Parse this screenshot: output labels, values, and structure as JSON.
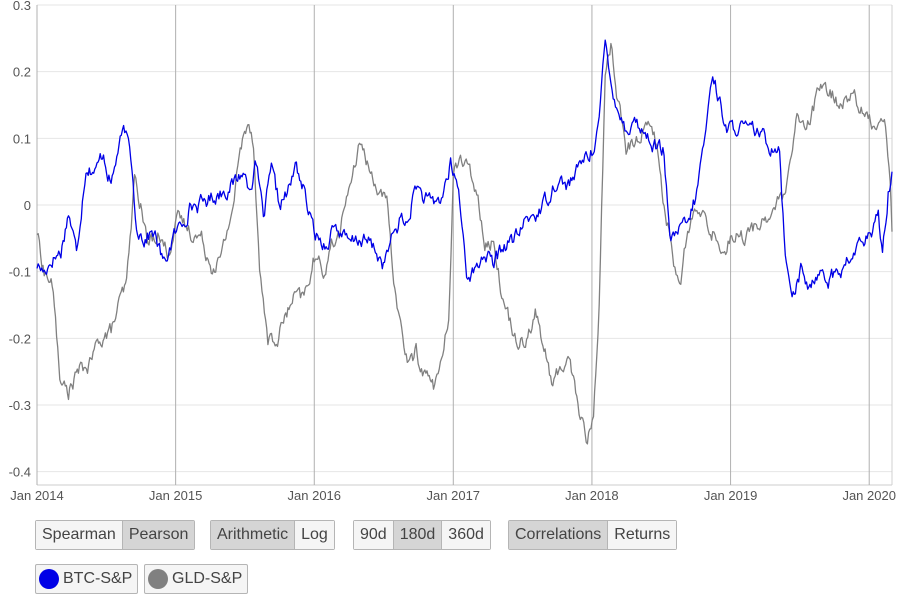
{
  "chart_data": {
    "type": "line",
    "title": "",
    "xlabel": "",
    "ylabel": "",
    "x_ticks": [
      "Jan 2014",
      "Jan 2015",
      "Jan 2016",
      "Jan 2017",
      "Jan 2018",
      "Jan 2019",
      "Jan 2020"
    ],
    "y_ticks": [
      "0.3",
      "0.2",
      "0.1",
      "0",
      "-0.1",
      "-0.2",
      "-0.3",
      "-0.4"
    ],
    "ylim": [
      -0.4,
      0.3
    ],
    "xlim": [
      "2014-01-01",
      "2020-03-01"
    ],
    "grid": true,
    "series": [
      {
        "name": "BTC-S&P",
        "color": "#0000e6",
        "points": [
          [
            "2014-01-01",
            -0.09
          ],
          [
            "2014-01-20",
            -0.1
          ],
          [
            "2014-02-10",
            -0.08
          ],
          [
            "2014-03-05",
            -0.07
          ],
          [
            "2014-03-25",
            -0.01
          ],
          [
            "2014-04-15",
            -0.07
          ],
          [
            "2014-05-10",
            0.06
          ],
          [
            "2014-06-05",
            0.05
          ],
          [
            "2014-06-25",
            0.08
          ],
          [
            "2014-07-15",
            0.03
          ],
          [
            "2014-08-05",
            0.09
          ],
          [
            "2014-08-20",
            0.11
          ],
          [
            "2014-09-05",
            0.07
          ],
          [
            "2014-09-20",
            -0.03
          ],
          [
            "2014-10-10",
            -0.05
          ],
          [
            "2014-11-05",
            -0.04
          ],
          [
            "2014-12-01",
            -0.09
          ],
          [
            "2014-12-25",
            -0.05
          ],
          [
            "2015-01-15",
            -0.03
          ],
          [
            "2015-02-10",
            0.0
          ],
          [
            "2015-03-05",
            0.0
          ],
          [
            "2015-04-01",
            0.01
          ],
          [
            "2015-05-01",
            0.02
          ],
          [
            "2015-06-01",
            0.03
          ],
          [
            "2015-06-25",
            0.05
          ],
          [
            "2015-07-15",
            0.03
          ],
          [
            "2015-08-01",
            0.06
          ],
          [
            "2015-08-20",
            -0.02
          ],
          [
            "2015-09-10",
            0.05
          ],
          [
            "2015-10-01",
            0.0
          ],
          [
            "2015-10-25",
            0.02
          ],
          [
            "2015-11-15",
            0.06
          ],
          [
            "2015-12-05",
            0.02
          ],
          [
            "2015-12-25",
            -0.03
          ],
          [
            "2016-01-10",
            -0.05
          ],
          [
            "2016-02-01",
            -0.06
          ],
          [
            "2016-02-20",
            -0.03
          ],
          [
            "2016-03-10",
            -0.04
          ],
          [
            "2016-04-01",
            -0.06
          ],
          [
            "2016-05-01",
            -0.05
          ],
          [
            "2016-06-01",
            -0.06
          ],
          [
            "2016-07-01",
            -0.09
          ],
          [
            "2016-07-25",
            -0.05
          ],
          [
            "2016-08-15",
            -0.02
          ],
          [
            "2016-09-01",
            -0.03
          ],
          [
            "2016-09-25",
            0.03
          ],
          [
            "2016-10-15",
            0.01
          ],
          [
            "2016-11-05",
            0.0
          ],
          [
            "2016-12-01",
            0.01
          ],
          [
            "2016-12-25",
            0.06
          ],
          [
            "2017-01-15",
            0.02
          ],
          [
            "2017-02-05",
            -0.1
          ],
          [
            "2017-03-01",
            -0.1
          ],
          [
            "2017-03-25",
            -0.07
          ],
          [
            "2017-04-15",
            -0.09
          ],
          [
            "2017-05-15",
            -0.06
          ],
          [
            "2017-06-15",
            -0.05
          ],
          [
            "2017-07-15",
            -0.02
          ],
          [
            "2017-08-15",
            -0.01
          ],
          [
            "2017-09-05",
            0.01
          ],
          [
            "2017-10-01",
            0.04
          ],
          [
            "2017-10-25",
            0.03
          ],
          [
            "2017-11-15",
            0.04
          ],
          [
            "2017-12-10",
            0.07
          ],
          [
            "2018-01-01",
            0.08
          ],
          [
            "2018-01-20",
            0.13
          ],
          [
            "2018-02-05",
            0.24
          ],
          [
            "2018-02-20",
            0.18
          ],
          [
            "2018-03-10",
            0.15
          ],
          [
            "2018-04-01",
            0.11
          ],
          [
            "2018-04-20",
            0.13
          ],
          [
            "2018-05-15",
            0.11
          ],
          [
            "2018-06-15",
            0.09
          ],
          [
            "2018-07-10",
            0.08
          ],
          [
            "2018-07-25",
            -0.06
          ],
          [
            "2018-08-15",
            -0.04
          ],
          [
            "2018-09-10",
            -0.03
          ],
          [
            "2018-10-01",
            0.01
          ],
          [
            "2018-10-25",
            0.1
          ],
          [
            "2018-11-15",
            0.2
          ],
          [
            "2018-12-01",
            0.16
          ],
          [
            "2018-12-25",
            0.11
          ],
          [
            "2019-01-20",
            0.12
          ],
          [
            "2019-02-15",
            0.11
          ],
          [
            "2019-03-15",
            0.11
          ],
          [
            "2019-04-10",
            0.09
          ],
          [
            "2019-05-10",
            0.09
          ],
          [
            "2019-05-25",
            -0.08
          ],
          [
            "2019-06-15",
            -0.13
          ],
          [
            "2019-07-05",
            -0.1
          ],
          [
            "2019-08-01",
            -0.13
          ],
          [
            "2019-08-25",
            -0.09
          ],
          [
            "2019-09-15",
            -0.11
          ],
          [
            "2019-10-15",
            -0.1
          ],
          [
            "2019-11-15",
            -0.08
          ],
          [
            "2019-12-15",
            -0.05
          ],
          [
            "2020-01-10",
            -0.05
          ],
          [
            "2020-01-25",
            -0.01
          ],
          [
            "2020-02-05",
            -0.07
          ],
          [
            "2020-02-20",
            0.02
          ],
          [
            "2020-03-01",
            0.05
          ]
        ]
      },
      {
        "name": "GLD-S&P",
        "color": "#808080",
        "points": [
          [
            "2014-01-01",
            -0.04
          ],
          [
            "2014-01-20",
            -0.1
          ],
          [
            "2014-02-10",
            -0.12
          ],
          [
            "2014-03-05",
            -0.27
          ],
          [
            "2014-03-25",
            -0.28
          ],
          [
            "2014-04-20",
            -0.25
          ],
          [
            "2014-05-20",
            -0.24
          ],
          [
            "2014-06-15",
            -0.2
          ],
          [
            "2014-07-15",
            -0.19
          ],
          [
            "2014-08-05",
            -0.15
          ],
          [
            "2014-08-25",
            -0.12
          ],
          [
            "2014-09-15",
            0.04
          ],
          [
            "2014-10-01",
            0.0
          ],
          [
            "2014-10-20",
            -0.06
          ],
          [
            "2014-11-15",
            -0.04
          ],
          [
            "2014-12-10",
            -0.07
          ],
          [
            "2015-01-10",
            -0.02
          ],
          [
            "2015-02-10",
            -0.04
          ],
          [
            "2015-03-10",
            -0.05
          ],
          [
            "2015-04-05",
            -0.09
          ],
          [
            "2015-05-01",
            -0.08
          ],
          [
            "2015-06-01",
            0.0
          ],
          [
            "2015-06-20",
            0.08
          ],
          [
            "2015-07-10",
            0.13
          ],
          [
            "2015-07-25",
            0.1
          ],
          [
            "2015-08-10",
            -0.1
          ],
          [
            "2015-09-01",
            -0.2
          ],
          [
            "2015-09-20",
            -0.21
          ],
          [
            "2015-10-15",
            -0.17
          ],
          [
            "2015-11-10",
            -0.14
          ],
          [
            "2015-12-05",
            -0.14
          ],
          [
            "2016-01-01",
            -0.08
          ],
          [
            "2016-01-25",
            -0.1
          ],
          [
            "2016-02-15",
            -0.06
          ],
          [
            "2016-03-10",
            -0.04
          ],
          [
            "2016-04-01",
            0.03
          ],
          [
            "2016-04-20",
            0.06
          ],
          [
            "2016-05-05",
            0.1
          ],
          [
            "2016-05-25",
            0.05
          ],
          [
            "2016-06-15",
            0.03
          ],
          [
            "2016-07-10",
            0.0
          ],
          [
            "2016-07-25",
            -0.1
          ],
          [
            "2016-08-15",
            -0.18
          ],
          [
            "2016-09-05",
            -0.24
          ],
          [
            "2016-09-25",
            -0.22
          ],
          [
            "2016-10-15",
            -0.25
          ],
          [
            "2016-11-10",
            -0.27
          ],
          [
            "2016-12-01",
            -0.24
          ],
          [
            "2016-12-20",
            -0.17
          ],
          [
            "2017-01-01",
            0.05
          ],
          [
            "2017-01-20",
            0.07
          ],
          [
            "2017-02-10",
            0.05
          ],
          [
            "2017-03-01",
            0.03
          ],
          [
            "2017-03-25",
            -0.05
          ],
          [
            "2017-04-20",
            -0.06
          ],
          [
            "2017-05-15",
            -0.15
          ],
          [
            "2017-06-15",
            -0.2
          ],
          [
            "2017-07-10",
            -0.2
          ],
          [
            "2017-08-05",
            -0.16
          ],
          [
            "2017-08-25",
            -0.21
          ],
          [
            "2017-09-20",
            -0.27
          ],
          [
            "2017-10-15",
            -0.24
          ],
          [
            "2017-11-05",
            -0.23
          ],
          [
            "2017-11-25",
            -0.3
          ],
          [
            "2017-12-20",
            -0.36
          ],
          [
            "2018-01-05",
            -0.31
          ],
          [
            "2018-01-20",
            -0.15
          ],
          [
            "2018-02-05",
            0.2
          ],
          [
            "2018-02-20",
            0.24
          ],
          [
            "2018-03-10",
            0.16
          ],
          [
            "2018-04-01",
            0.08
          ],
          [
            "2018-05-01",
            0.1
          ],
          [
            "2018-06-01",
            0.13
          ],
          [
            "2018-06-20",
            0.09
          ],
          [
            "2018-07-10",
            0.0
          ],
          [
            "2018-08-01",
            -0.07
          ],
          [
            "2018-08-20",
            -0.13
          ],
          [
            "2018-09-10",
            -0.04
          ],
          [
            "2018-10-01",
            -0.01
          ],
          [
            "2018-10-20",
            -0.02
          ],
          [
            "2018-11-15",
            -0.04
          ],
          [
            "2018-12-10",
            -0.07
          ],
          [
            "2019-01-10",
            -0.04
          ],
          [
            "2019-02-10",
            -0.05
          ],
          [
            "2019-03-10",
            -0.03
          ],
          [
            "2019-04-05",
            -0.02
          ],
          [
            "2019-05-01",
            0.0
          ],
          [
            "2019-05-20",
            0.01
          ],
          [
            "2019-06-10",
            0.06
          ],
          [
            "2019-06-25",
            0.13
          ],
          [
            "2019-07-20",
            0.11
          ],
          [
            "2019-08-20",
            0.17
          ],
          [
            "2019-09-20",
            0.17
          ],
          [
            "2019-10-20",
            0.15
          ],
          [
            "2019-11-20",
            0.17
          ],
          [
            "2019-12-20",
            0.13
          ],
          [
            "2020-01-20",
            0.12
          ],
          [
            "2020-02-10",
            0.14
          ],
          [
            "2020-02-25",
            0.04
          ],
          [
            "2020-03-01",
            -0.04
          ]
        ]
      }
    ]
  },
  "controls": {
    "method": {
      "options": [
        "Spearman",
        "Pearson"
      ],
      "selected": "Pearson"
    },
    "scale": {
      "options": [
        "Arithmetic",
        "Log"
      ],
      "selected": "Arithmetic"
    },
    "window": {
      "options": [
        "90d",
        "180d",
        "360d"
      ],
      "selected": "180d"
    },
    "view": {
      "options": [
        "Correlations",
        "Returns"
      ],
      "selected": "Correlations"
    }
  },
  "legend": [
    {
      "name": "BTC-S&P",
      "color": "#0000e6"
    },
    {
      "name": "GLD-S&P",
      "color": "#808080"
    }
  ]
}
